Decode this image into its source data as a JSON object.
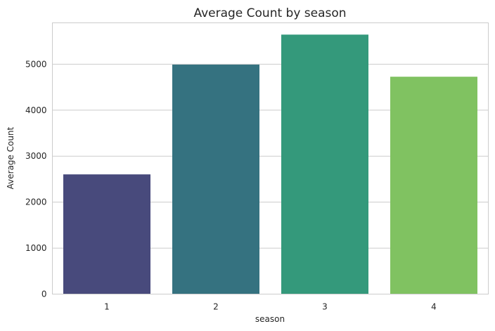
{
  "chart_data": {
    "type": "bar",
    "title": "Average Count by season",
    "xlabel": "season",
    "ylabel": "Average Count",
    "categories": [
      "1",
      "2",
      "3",
      "4"
    ],
    "values": [
      2604,
      4992,
      5644,
      4728
    ],
    "colors": [
      "#484a7c",
      "#357280",
      "#34997b",
      "#80c261"
    ],
    "ylim": [
      0,
      5900
    ],
    "yticks": [
      0,
      1000,
      2000,
      3000,
      4000,
      5000
    ],
    "grid": "horizontal",
    "legend": "none"
  }
}
